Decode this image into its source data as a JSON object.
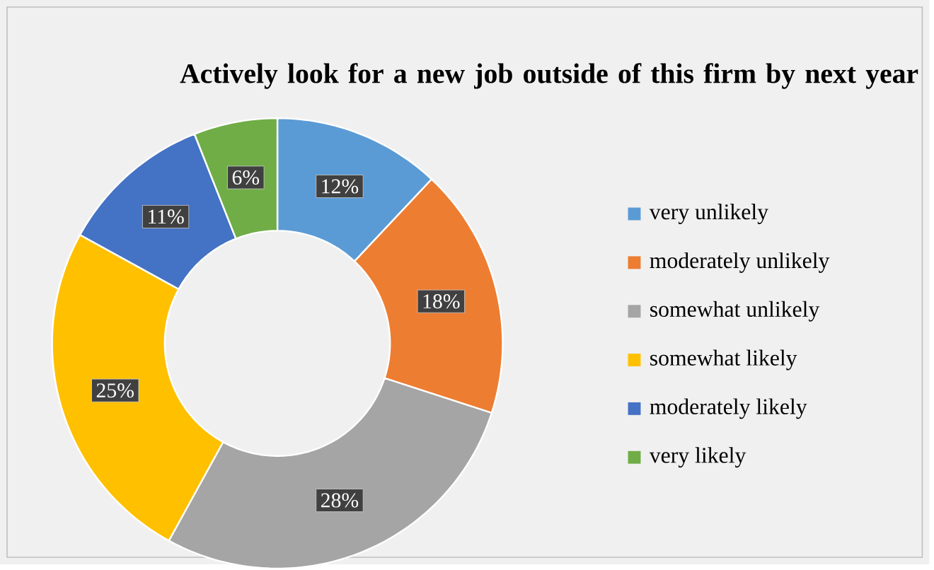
{
  "chart_data": {
    "type": "donut",
    "title": "Actively look for a new job outside of this firm by next year",
    "categories": [
      "very unlikely",
      "moderately unlikely",
      "somewhat unlikely",
      "somewhat likely",
      "moderately likely",
      "very likely"
    ],
    "values": [
      12,
      18,
      28,
      25,
      11,
      6
    ],
    "value_labels": [
      "12%",
      "18%",
      "28%",
      "25%",
      "11%",
      "6%"
    ],
    "colors": [
      "#5b9bd5",
      "#ed7d31",
      "#a5a5a5",
      "#ffc000",
      "#4472c4",
      "#70ad47"
    ],
    "legend": "right"
  }
}
